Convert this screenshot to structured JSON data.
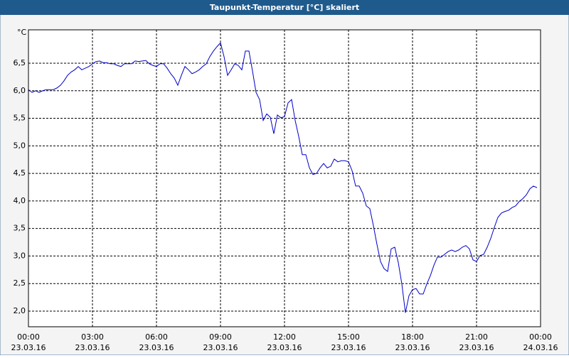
{
  "chart_data": {
    "type": "line",
    "title": "Taupunkt-Temperatur [°C] skaliert",
    "ylabel": "°C",
    "x": [
      0,
      10,
      20,
      30,
      40,
      50,
      60,
      70,
      80,
      90,
      100,
      110,
      120,
      130,
      140,
      150,
      160,
      170,
      180,
      190,
      200,
      210,
      220,
      230,
      240,
      250,
      260,
      270,
      280,
      290,
      300,
      310,
      320,
      330,
      340,
      350,
      360,
      370,
      380,
      390,
      400,
      410,
      420,
      430,
      440,
      450,
      460,
      470,
      480,
      490,
      500,
      510,
      520,
      530,
      540,
      550,
      560,
      570,
      580,
      590,
      600,
      610,
      620,
      630,
      640,
      650,
      660,
      670,
      680,
      690,
      700,
      710,
      720,
      730,
      740,
      750,
      760,
      770,
      780,
      790,
      800,
      810,
      820,
      830,
      840,
      850,
      860,
      870,
      880,
      890,
      900,
      910,
      920,
      930,
      940,
      950,
      960,
      970,
      980,
      990,
      1000,
      1010,
      1020,
      1030,
      1040,
      1050,
      1060,
      1070,
      1080,
      1090,
      1100,
      1110,
      1120,
      1130,
      1140,
      1150,
      1160,
      1170,
      1180,
      1190,
      1200,
      1210,
      1220,
      1230,
      1240,
      1250,
      1260,
      1270,
      1280,
      1290,
      1300,
      1310,
      1320,
      1330,
      1340,
      1350,
      1360,
      1370,
      1380,
      1390,
      1400,
      1410,
      1420,
      1430
    ],
    "series": [
      {
        "name": "Taupunkt-Temperatur",
        "color": "#0000c8",
        "values": [
          6.02,
          5.97,
          6.0,
          5.97,
          6.0,
          6.02,
          6.02,
          6.02,
          6.05,
          6.1,
          6.18,
          6.28,
          6.34,
          6.38,
          6.44,
          6.38,
          6.41,
          6.44,
          6.49,
          6.53,
          6.54,
          6.51,
          6.51,
          6.49,
          6.49,
          6.46,
          6.44,
          6.49,
          6.49,
          6.49,
          6.54,
          6.53,
          6.54,
          6.55,
          6.49,
          6.46,
          6.44,
          6.49,
          6.49,
          6.41,
          6.31,
          6.23,
          6.1,
          6.28,
          6.44,
          6.38,
          6.31,
          6.34,
          6.38,
          6.44,
          6.49,
          6.62,
          6.72,
          6.8,
          6.87,
          6.62,
          6.28,
          6.38,
          6.49,
          6.46,
          6.38,
          6.72,
          6.72,
          6.36,
          5.97,
          5.84,
          5.46,
          5.58,
          5.52,
          5.22,
          5.56,
          5.51,
          5.53,
          5.78,
          5.84,
          5.46,
          5.17,
          4.84,
          4.84,
          4.6,
          4.48,
          4.5,
          4.6,
          4.68,
          4.6,
          4.63,
          4.76,
          4.71,
          4.73,
          4.73,
          4.71,
          4.55,
          4.27,
          4.27,
          4.14,
          3.91,
          3.86,
          3.55,
          3.21,
          2.9,
          2.77,
          2.72,
          3.13,
          3.16,
          2.88,
          2.49,
          1.97,
          2.28,
          2.39,
          2.41,
          2.31,
          2.31,
          2.49,
          2.64,
          2.83,
          2.98,
          2.98,
          3.03,
          3.08,
          3.11,
          3.08,
          3.11,
          3.16,
          3.19,
          3.13,
          2.93,
          2.9,
          3.01,
          3.03,
          3.16,
          3.32,
          3.52,
          3.7,
          3.78,
          3.81,
          3.83,
          3.88,
          3.91,
          3.99,
          4.04,
          4.11,
          4.22,
          4.27,
          4.24
        ]
      }
    ],
    "xlim": [
      0,
      1440
    ],
    "xticks": [
      {
        "value": 0,
        "label": "00:00"
      },
      {
        "value": 180,
        "label": "03:00"
      },
      {
        "value": 360,
        "label": "06:00"
      },
      {
        "value": 540,
        "label": "09:00"
      },
      {
        "value": 720,
        "label": "12:00"
      },
      {
        "value": 900,
        "label": "15:00"
      },
      {
        "value": 1080,
        "label": "18:00"
      },
      {
        "value": 1260,
        "label": "21:00"
      },
      {
        "value": 1440,
        "label": "00:00"
      }
    ],
    "xtick_dates": [
      "23.03.16",
      "23.03.16",
      "23.03.16",
      "23.03.16",
      "23.03.16",
      "23.03.16",
      "23.03.16",
      "23.03.16",
      "24.03.16"
    ],
    "ylim": [
      1.716,
      7.106
    ],
    "yticks": [
      {
        "value": 2.0,
        "label": "2,0"
      },
      {
        "value": 2.5,
        "label": "2,5"
      },
      {
        "value": 3.0,
        "label": "3,0"
      },
      {
        "value": 3.5,
        "label": "3,5"
      },
      {
        "value": 4.0,
        "label": "4,0"
      },
      {
        "value": 4.5,
        "label": "4,5"
      },
      {
        "value": 5.0,
        "label": "5,0"
      },
      {
        "value": 5.5,
        "label": "5,5"
      },
      {
        "value": 6.0,
        "label": "6,0"
      },
      {
        "value": 6.5,
        "label": "6,5"
      }
    ],
    "grid": true
  }
}
